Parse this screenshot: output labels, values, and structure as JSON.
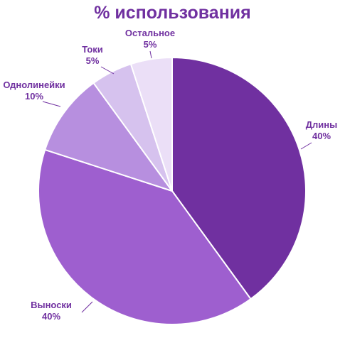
{
  "chart_data": {
    "type": "pie",
    "title": "% использования",
    "slices": [
      {
        "label": "Длины",
        "value": 40,
        "value_label": "40%",
        "color": "#7030a0"
      },
      {
        "label": "Выноски",
        "value": 40,
        "value_label": "40%",
        "color": "#9e5fcf"
      },
      {
        "label": "Однолинейки",
        "value": 10,
        "value_label": "10%",
        "color": "#b78fdf"
      },
      {
        "label": "Токи",
        "value": 5,
        "value_label": "5%",
        "color": "#d6c2ee"
      },
      {
        "label": "Остальное",
        "value": 5,
        "value_label": "5%",
        "color": "#ebdff7"
      }
    ],
    "label_color": "#7030a0",
    "leader_line_color": "#7030a0",
    "slice_border_color": "#ffffff"
  }
}
